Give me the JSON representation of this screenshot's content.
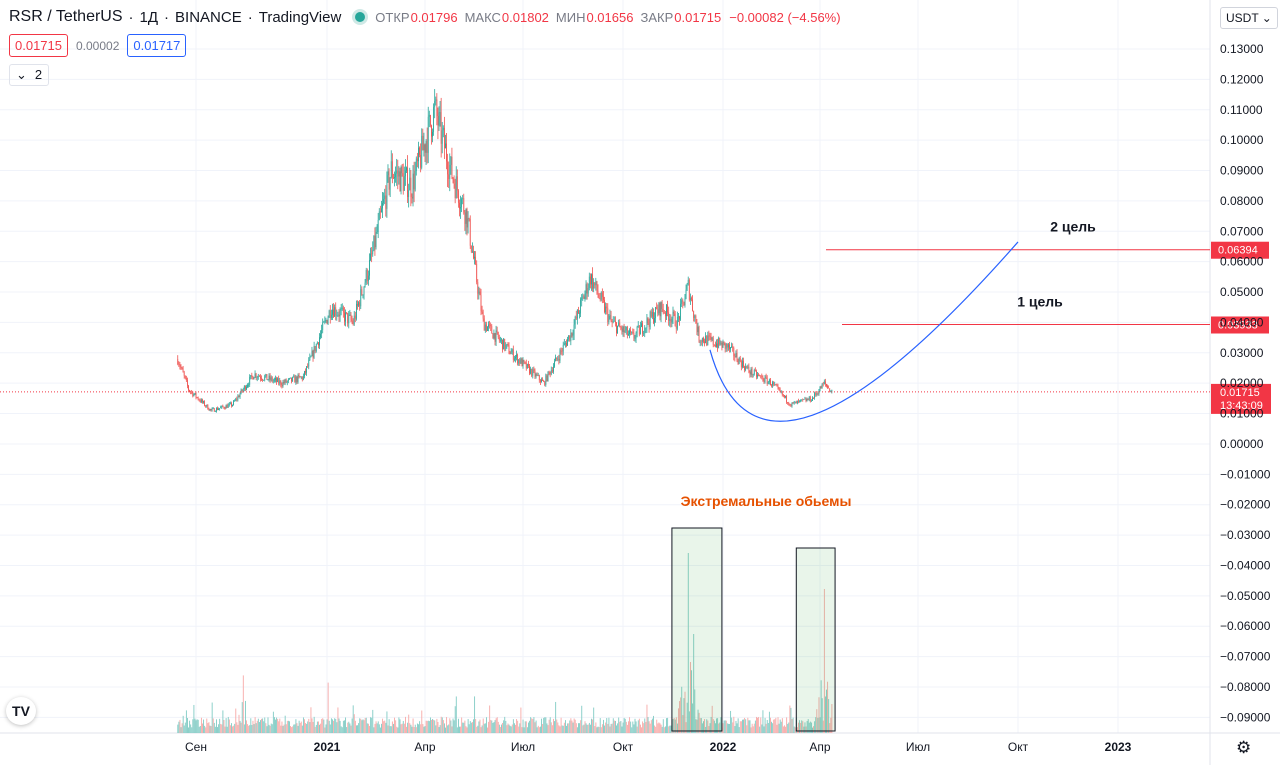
{
  "header": {
    "symbol": "RSR / TetherUS",
    "interval": "1Д",
    "exchange": "BINANCE",
    "source": "TradingView",
    "ohlc": [
      {
        "label": "ОТКР",
        "value": "0.01796"
      },
      {
        "label": "МАКС",
        "value": "0.01802"
      },
      {
        "label": "МИН",
        "value": "0.01656"
      },
      {
        "label": "ЗАКР",
        "value": "0.01715"
      }
    ],
    "change": "−0.00082 (−4.56%)",
    "sell_price": "0.01715",
    "spread": "0.00002",
    "buy_price": "0.01717",
    "indicator_count": "2",
    "currency": "USDT",
    "logo_text": "TV"
  },
  "colors": {
    "up": "#26a69a",
    "down": "#ef5350",
    "target": "#f23645",
    "curve": "#2962ff",
    "volume_annotation": "#e65100"
  },
  "icons": [
    "chevron-down-icon",
    "settings-gear-icon",
    "tradingview-logo-icon",
    "status-dot-icon"
  ],
  "chart_data": {
    "type": "candlestick",
    "title": "RSR / TetherUS",
    "x_tick_labels": [
      "Сен",
      "2021",
      "Апр",
      "Июл",
      "Окт",
      "2022",
      "Апр",
      "Июл",
      "Окт",
      "2023"
    ],
    "y_tick_labels": [
      "0.13000",
      "0.12000",
      "0.11000",
      "0.10000",
      "0.09000",
      "0.08000",
      "0.07000",
      "0.06000",
      "0.05000",
      "0.04000",
      "0.03000",
      "0.02000",
      "0.01000",
      "0.00000",
      "−0.01000",
      "−0.02000",
      "−0.03000",
      "−0.04000",
      "−0.05000",
      "−0.06000",
      "−0.07000",
      "−0.08000",
      "−0.09000"
    ],
    "ylim": [
      -0.095,
      0.135
    ],
    "price_path": [
      {
        "date": "2020-08-15",
        "close": 0.028
      },
      {
        "date": "2020-08-25",
        "close": 0.018
      },
      {
        "date": "2020-09-15",
        "close": 0.011
      },
      {
        "date": "2020-10-05",
        "close": 0.013
      },
      {
        "date": "2020-10-25",
        "close": 0.023
      },
      {
        "date": "2020-11-20",
        "close": 0.02
      },
      {
        "date": "2020-12-10",
        "close": 0.022
      },
      {
        "date": "2021-01-05",
        "close": 0.045
      },
      {
        "date": "2021-01-25",
        "close": 0.04
      },
      {
        "date": "2021-02-10",
        "close": 0.06
      },
      {
        "date": "2021-03-01",
        "close": 0.09
      },
      {
        "date": "2021-03-20",
        "close": 0.085
      },
      {
        "date": "2021-04-10",
        "close": 0.11
      },
      {
        "date": "2021-04-25",
        "close": 0.09
      },
      {
        "date": "2021-05-10",
        "close": 0.075
      },
      {
        "date": "2021-05-25",
        "close": 0.04
      },
      {
        "date": "2021-06-20",
        "close": 0.03
      },
      {
        "date": "2021-07-20",
        "close": 0.02
      },
      {
        "date": "2021-08-15",
        "close": 0.037
      },
      {
        "date": "2021-09-01",
        "close": 0.055
      },
      {
        "date": "2021-09-20",
        "close": 0.04
      },
      {
        "date": "2021-10-10",
        "close": 0.035
      },
      {
        "date": "2021-11-05",
        "close": 0.045
      },
      {
        "date": "2021-11-20",
        "close": 0.04
      },
      {
        "date": "2021-11-30",
        "close": 0.052
      },
      {
        "date": "2021-12-10",
        "close": 0.035
      },
      {
        "date": "2022-01-05",
        "close": 0.032
      },
      {
        "date": "2022-01-25",
        "close": 0.024
      },
      {
        "date": "2022-02-15",
        "close": 0.02
      },
      {
        "date": "2022-03-05",
        "close": 0.013
      },
      {
        "date": "2022-03-25",
        "close": 0.015
      },
      {
        "date": "2022-04-05",
        "close": 0.02
      },
      {
        "date": "2022-04-12",
        "close": 0.01715
      }
    ],
    "current_price": {
      "value": 0.01715,
      "label": "0.01715",
      "countdown": "13:43:09"
    },
    "targets": [
      {
        "name": "2 цель",
        "value": 0.06394,
        "label": "0.06394"
      },
      {
        "name": "1 цель",
        "value": 0.03933,
        "label": "0.03933"
      }
    ],
    "projection_curve": {
      "start": {
        "date": "2021-12-20",
        "price": 0.031
      },
      "bottom": {
        "date": "2022-03-25",
        "price": 0.0095
      },
      "end": {
        "date": "2022-10-01",
        "price": 0.0665
      }
    },
    "annotations": [
      {
        "text": "Экстремальные обьемы",
        "boxes": [
          {
            "from": "2021-11-15",
            "to": "2021-12-31"
          },
          {
            "from": "2022-03-10",
            "to": "2022-04-15"
          }
        ]
      }
    ],
    "volume_spikes": [
      {
        "date": "2020-10-15",
        "value": 0.32
      },
      {
        "date": "2021-01-02",
        "value": 0.28
      },
      {
        "date": "2021-11-30",
        "value": 1.0
      },
      {
        "date": "2021-12-05",
        "value": 0.55
      },
      {
        "date": "2022-04-05",
        "value": 0.8
      }
    ]
  }
}
